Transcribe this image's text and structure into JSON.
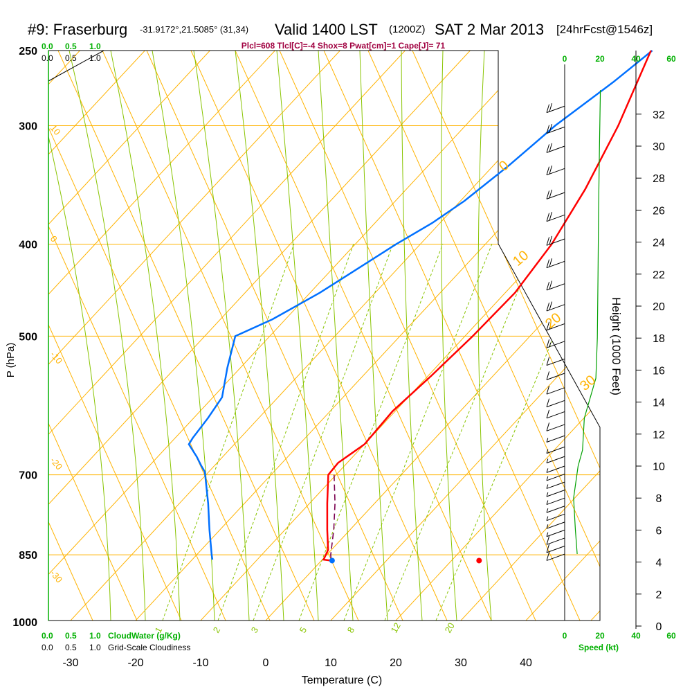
{
  "header": {
    "station": "#9: Fraserburg",
    "coords": "-31.9172°,21.5085° (31,34)",
    "valid": "Valid 1400 LST",
    "zulu": "(1200Z)",
    "date": "SAT 2 Mar 2013",
    "fcst": "[24hrFcst@1546z]"
  },
  "indices_line": "Plcl=608 Tlcl[C]=-4 Shox=8 Pwat[cm]=1 Cape[J]= 71",
  "cloud_scales": {
    "cloudwater_ticks": [
      "0.0",
      "0.5",
      "1.0"
    ],
    "cloudiness_ticks": [
      "0.0",
      "0.5",
      "1.0"
    ],
    "cloudwater_label": "CloudWater (g/Kg)",
    "cloudiness_label": "Grid-Scale Cloudiness"
  },
  "speed_axis": {
    "ticks": [
      "0",
      "20",
      "40",
      "60"
    ],
    "label": "Speed (kt)"
  },
  "colors": {
    "isotherm": "#ffb300",
    "dry_adiabat": "#ffb300",
    "moist_adiabat": "#88c400",
    "mixing_ratio": "#88c400",
    "temperature": "#ff0000",
    "dewpoint": "#0070ff",
    "parcel": "#7a0050",
    "green": "#00b000",
    "title_red": "#a00040"
  },
  "chart_data": {
    "type": "line",
    "title": "#9: Fraserburg Valid 1400 LST (1200Z) SAT 2 Mar 2013 [24hrFcst@1546z]",
    "xlabel": "Temperature (C)",
    "ylabel": "P (hPa)",
    "y2label": "Height (1000 Feet)",
    "xlim": [
      -34,
      46
    ],
    "x_ticks": [
      -30,
      -20,
      -10,
      0,
      10,
      20,
      30,
      40
    ],
    "pressure_ticks": [
      250,
      300,
      400,
      500,
      700,
      850,
      1000
    ],
    "height_ticks": [
      0,
      2,
      4,
      6,
      8,
      10,
      12,
      14,
      16,
      18,
      20,
      22,
      24,
      26,
      28,
      30,
      32
    ],
    "mixing_ratio_labels": [
      1,
      2,
      3,
      5,
      8,
      12,
      20
    ],
    "dry_adiabat_labels": [
      "10",
      "0",
      "-10",
      "-20",
      "-30"
    ],
    "moist_adiabat_labels": [
      "0",
      "10",
      "20",
      "30"
    ],
    "series": [
      {
        "name": "Temperature",
        "points": [
          [
            250,
            -22.2
          ],
          [
            300,
            -16.5
          ],
          [
            350,
            -12.5
          ],
          [
            400,
            -9.8
          ],
          [
            450,
            -8.5
          ],
          [
            500,
            -8.8
          ],
          [
            550,
            -9.5
          ],
          [
            600,
            -10.4
          ],
          [
            650,
            -10.0
          ],
          [
            680,
            -11.4
          ],
          [
            700,
            -11.2
          ],
          [
            750,
            -7.3
          ],
          [
            800,
            -3.5
          ],
          [
            840,
            -0.5
          ],
          [
            860,
            0.2
          ],
          [
            862,
            1.5
          ]
        ]
      },
      {
        "name": "Dewpoint",
        "points": [
          [
            250,
            -22.0
          ],
          [
            270,
            -23.5
          ],
          [
            300,
            -26.2
          ],
          [
            330,
            -27.6
          ],
          [
            360,
            -29.4
          ],
          [
            380,
            -31.2
          ],
          [
            400,
            -33.7
          ],
          [
            450,
            -38.5
          ],
          [
            480,
            -42.0
          ],
          [
            500,
            -45.3
          ],
          [
            540,
            -42.0
          ],
          [
            580,
            -38.6
          ],
          [
            610,
            -37.8
          ],
          [
            640,
            -37.3
          ],
          [
            650,
            -37.0
          ],
          [
            670,
            -34.0
          ],
          [
            685,
            -32.0
          ],
          [
            695,
            -30.6
          ],
          [
            750,
            -25.6
          ],
          [
            800,
            -21.6
          ],
          [
            850,
            -17.7
          ],
          [
            860,
            -16.9
          ]
        ]
      },
      {
        "name": "Parcel",
        "points": [
          [
            700,
            -10.3
          ],
          [
            750,
            -6.1
          ],
          [
            800,
            -2.5
          ],
          [
            850,
            0.6
          ],
          [
            862,
            1.5
          ]
        ]
      }
    ],
    "surface": {
      "pressure": 862,
      "temperature": 32.8,
      "dewpoint": 10.2
    },
    "wind_profile": [
      {
        "height_kft": 32.5,
        "speed_kt": 20
      },
      {
        "height_kft": 31.2,
        "speed_kt": 20
      },
      {
        "height_kft": 30.0,
        "speed_kt": 20
      },
      {
        "height_kft": 28.6,
        "speed_kt": 20
      },
      {
        "height_kft": 27.1,
        "speed_kt": 20
      },
      {
        "height_kft": 25.7,
        "speed_kt": 20
      },
      {
        "height_kft": 24.2,
        "speed_kt": 20
      },
      {
        "height_kft": 22.8,
        "speed_kt": 20
      },
      {
        "height_kft": 21.4,
        "speed_kt": 20
      },
      {
        "height_kft": 20.1,
        "speed_kt": 20
      },
      {
        "height_kft": 18.9,
        "speed_kt": 18
      },
      {
        "height_kft": 17.8,
        "speed_kt": 16
      },
      {
        "height_kft": 16.7,
        "speed_kt": 14
      },
      {
        "height_kft": 15.8,
        "speed_kt": 13
      },
      {
        "height_kft": 14.9,
        "speed_kt": 12
      },
      {
        "height_kft": 14.1,
        "speed_kt": 11
      },
      {
        "height_kft": 13.4,
        "speed_kt": 10
      },
      {
        "height_kft": 12.6,
        "speed_kt": 10
      },
      {
        "height_kft": 11.9,
        "speed_kt": 9
      },
      {
        "height_kft": 11.2,
        "speed_kt": 9
      },
      {
        "height_kft": 10.6,
        "speed_kt": 8
      },
      {
        "height_kft": 10.0,
        "speed_kt": 8
      },
      {
        "height_kft": 9.5,
        "speed_kt": 7
      },
      {
        "height_kft": 9.0,
        "speed_kt": 7
      },
      {
        "height_kft": 8.5,
        "speed_kt": 7
      },
      {
        "height_kft": 8.0,
        "speed_kt": 7
      },
      {
        "height_kft": 7.5,
        "speed_kt": 8
      },
      {
        "height_kft": 7.0,
        "speed_kt": 8
      },
      {
        "height_kft": 6.5,
        "speed_kt": 9
      },
      {
        "height_kft": 6.0,
        "speed_kt": 9
      },
      {
        "height_kft": 5.5,
        "speed_kt": 10
      },
      {
        "height_kft": 5.0,
        "speed_kt": 10
      },
      {
        "height_kft": 4.5,
        "speed_kt": 11
      }
    ],
    "speed_profile": [
      {
        "height_kft": 33.5,
        "speed_kt": 20
      },
      {
        "height_kft": 30.0,
        "speed_kt": 19.5
      },
      {
        "height_kft": 26.0,
        "speed_kt": 19.0
      },
      {
        "height_kft": 22.0,
        "speed_kt": 18.7
      },
      {
        "height_kft": 18.0,
        "speed_kt": 18.3
      },
      {
        "height_kft": 15.5,
        "speed_kt": 17.5
      },
      {
        "height_kft": 13.0,
        "speed_kt": 11.0
      },
      {
        "height_kft": 11.0,
        "speed_kt": 10.0
      },
      {
        "height_kft": 10.0,
        "speed_kt": 7.5
      },
      {
        "height_kft": 8.0,
        "speed_kt": 5.0
      },
      {
        "height_kft": 6.0,
        "speed_kt": 6.0
      },
      {
        "height_kft": 4.5,
        "speed_kt": 7.0
      }
    ]
  }
}
